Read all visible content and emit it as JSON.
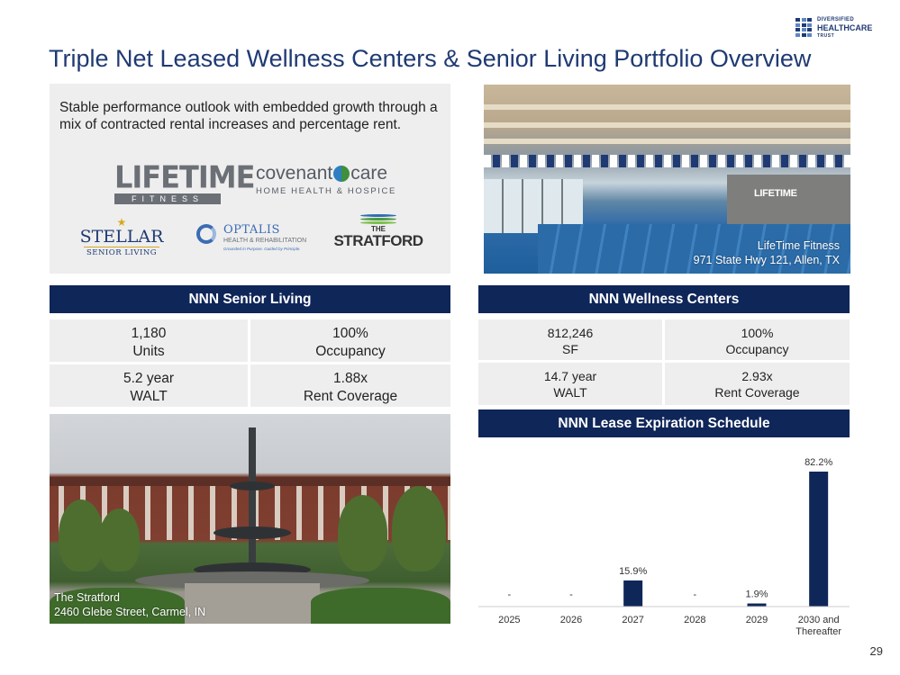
{
  "title": "Triple Net Leased Wellness Centers & Senior Living Portfolio Overview",
  "logo": {
    "line1": "DIVERSIFIED",
    "line2": "HEALTHCARE",
    "line3": "TRUST",
    "icon": "dht-grid-icon"
  },
  "intro": "Stable performance outlook with embedded growth through a mix of contracted rental increases and percentage rent.",
  "brands": {
    "lifetime": {
      "big": "LIFETIME",
      "small": "FITNESS"
    },
    "covenant": {
      "name_a": "covenant",
      "name_b": "care",
      "sub": "HOME HEALTH & HOSPICE"
    },
    "stellar": {
      "name": "STELLAR",
      "sub": "SENIOR LIVING"
    },
    "optalis": {
      "name": "OPTALIS",
      "sub": "HEALTH & REHABILITATION",
      "tag": "Grounded in Purpose. Guided by Principle."
    },
    "stratford": {
      "the": "THE",
      "name": "STRATFORD"
    }
  },
  "pool_photo": {
    "brandmark": "LIFETIME",
    "caption_line1": "LifeTime Fitness",
    "caption_line2": "971 State Hwy 121, Allen, TX"
  },
  "senior_living": {
    "header": "NNN Senior Living",
    "stats": [
      {
        "value": "1,180",
        "label": "Units"
      },
      {
        "value": "100%",
        "label": "Occupancy"
      },
      {
        "value": "5.2 year",
        "label": "WALT"
      },
      {
        "value": "1.88x",
        "label": "Rent Coverage"
      }
    ]
  },
  "wellness": {
    "header": "NNN Wellness Centers",
    "stats": [
      {
        "value": "812,246",
        "label": "SF"
      },
      {
        "value": "100%",
        "label": "Occupancy"
      },
      {
        "value": "14.7 year",
        "label": "WALT"
      },
      {
        "value": "2.93x",
        "label": "Rent Coverage"
      }
    ]
  },
  "fountain_photo": {
    "caption_line1": "The Stratford",
    "caption_line2": "2460 Glebe Street, Carmel, IN"
  },
  "expiration": {
    "header": "NNN Lease Expiration Schedule"
  },
  "chart_data": {
    "type": "bar",
    "title": "",
    "categories": [
      "2025",
      "2026",
      "2027",
      "2028",
      "2029",
      "2030 and Thereafter"
    ],
    "values": [
      0,
      0,
      15.9,
      0,
      1.9,
      82.2
    ],
    "data_labels": [
      "-",
      "-",
      "15.9%",
      "-",
      "1.9%",
      "82.2%"
    ],
    "ylim": [
      0,
      82.2
    ],
    "bar_color": "#0f2659",
    "grid": false,
    "legend": "none"
  },
  "page_number": "29"
}
